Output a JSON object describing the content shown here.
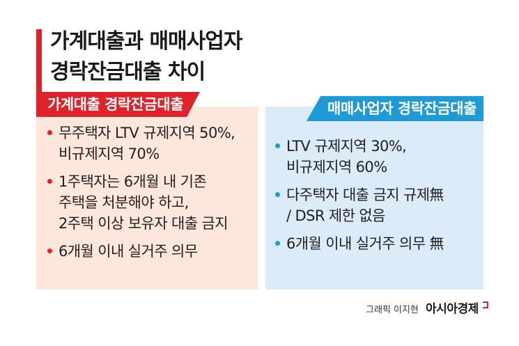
{
  "title": {
    "line1": "가계대출과 매매사업자",
    "line2": "경락잔금대출 차이"
  },
  "left_panel": {
    "tab_label": "가계대출 경락잔금대출",
    "items": [
      {
        "lines": [
          "무주택자 LTV 규제지역 50%,",
          "비규제지역 70%"
        ]
      },
      {
        "lines": [
          "1주택자는 6개월 내 기존",
          "주택을 처분해야 하고,",
          "2주택 이상 보유자 대출 금지"
        ]
      },
      {
        "lines": [
          "6개월 이내 실거주 의무"
        ]
      }
    ]
  },
  "right_panel": {
    "tab_label": "매매사업자 경락잔금대출",
    "items": [
      {
        "lines": [
          "LTV 규제지역 30%,",
          "비규제지역 60%"
        ]
      },
      {
        "lines": [
          "다주택자 대출 금지 규제無",
          "/ DSR 제한 없음"
        ]
      },
      {
        "lines": [
          "6개월 이내 실거주 의무 無"
        ]
      }
    ]
  },
  "credit": {
    "text": "그래픽 이지현",
    "brand": "아시아경제"
  },
  "colors": {
    "accent_red": "#e1222b",
    "accent_blue": "#1f9ad6",
    "panel_left_bg": "#fde6db",
    "panel_right_bg": "#dcebf8"
  }
}
